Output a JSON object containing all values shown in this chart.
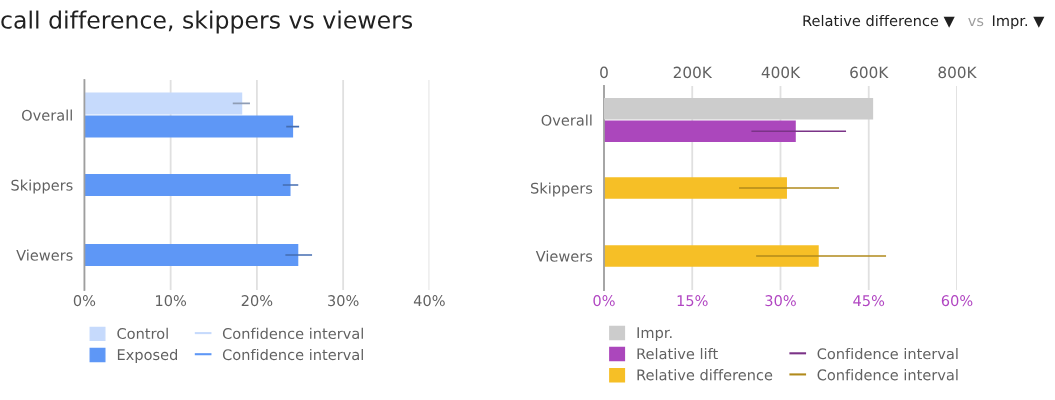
{
  "chart_data": [
    {
      "type": "bar",
      "orientation": "horizontal",
      "title": "call difference, skippers vs viewers",
      "categories": [
        "Overall",
        "Skippers",
        "Viewers"
      ],
      "series": [
        {
          "name": "Control",
          "color": "#c6dafc",
          "values": [
            18.3,
            null,
            null
          ],
          "errors": [
            [
              17.3,
              19.1
            ],
            null,
            null
          ]
        },
        {
          "name": "Exposed",
          "color": "#5e97f6",
          "values": [
            24.2,
            23.9,
            24.8
          ],
          "errors": [
            [
              23.5,
              24.8
            ],
            [
              23.1,
              24.7
            ],
            [
              23.4,
              26.3
            ]
          ]
        }
      ],
      "xlim": [
        0,
        40
      ],
      "xticks": [
        {
          "value": 0,
          "label": "0%"
        },
        {
          "value": 10,
          "label": "10%"
        },
        {
          "value": 20,
          "label": "20%"
        },
        {
          "value": 30,
          "label": "30%"
        },
        {
          "value": 40,
          "label": "40%"
        }
      ],
      "grid": "x",
      "legend": "bottom",
      "annotations": [
        "Confidence interval",
        "Confidence interval"
      ]
    },
    {
      "type": "bar",
      "orientation": "horizontal",
      "categories": [
        "Overall",
        "Skippers",
        "Viewers"
      ],
      "series": [
        {
          "name": "Impr.",
          "color": "#cccccc",
          "axis": "x2",
          "values": [
            610000,
            null,
            null
          ]
        },
        {
          "name": "Relative lift",
          "color": "#ab47bc",
          "values": [
            32.6,
            null,
            null
          ],
          "errors": [
            [
              25.2,
              41.0
            ],
            null,
            null
          ]
        },
        {
          "name": "Relative difference",
          "color": "#f6bf26",
          "values": [
            null,
            31.1,
            36.5
          ],
          "errors": [
            null,
            [
              23.1,
              39.8
            ],
            [
              26.0,
              47.8
            ]
          ]
        }
      ],
      "xlim": [
        0,
        60
      ],
      "xticks": [
        {
          "value": 0,
          "label": "0%"
        },
        {
          "value": 15,
          "label": "15%"
        },
        {
          "value": 30,
          "label": "30%"
        },
        {
          "value": 45,
          "label": "45%"
        },
        {
          "value": 60,
          "label": "60%"
        }
      ],
      "x2lim": [
        0,
        800000
      ],
      "x2ticks": [
        0,
        {
          "value": 200000,
          "label": "200K"
        },
        {
          "value": 400000,
          "label": "400K"
        },
        {
          "value": 600000,
          "label": "600K"
        },
        {
          "value": 800000,
          "label": "800K"
        }
      ],
      "grid": "x",
      "legend": "bottom",
      "annotations": [
        "Relative difference ▼",
        "vs",
        "Impr. ▼",
        "Confidence interval",
        "Confidence interval"
      ]
    }
  ]
}
